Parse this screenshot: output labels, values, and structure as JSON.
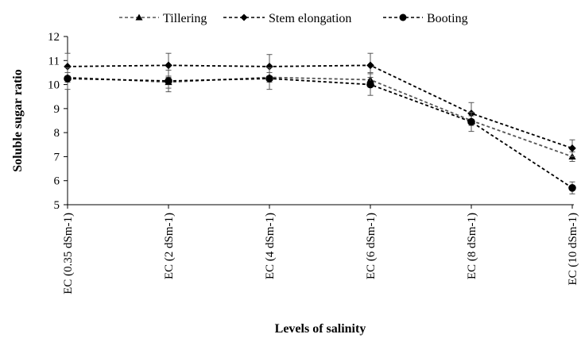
{
  "chart_data": {
    "type": "line",
    "title": "",
    "xlabel": "Levels of salinity",
    "ylabel": "Soluble sugar ratio",
    "categories": [
      "EC (0.35 dSm-1)",
      "EC (2 dSm-1)",
      "EC (4 dSm-1)",
      "EC (6 dSm-1)",
      "EC (8 dSm-1)",
      "EC (10 dSm-1)"
    ],
    "ylim": [
      5,
      12
    ],
    "yticks": [
      5,
      6,
      7,
      8,
      9,
      10,
      11,
      12
    ],
    "grid": false,
    "legend_position": "top",
    "series": [
      {
        "name": "Tillering",
        "marker": "triangle",
        "color": "#555555",
        "values": [
          10.3,
          10.1,
          10.3,
          10.2,
          8.5,
          7.0
        ],
        "errors": [
          0.2,
          0.25,
          0.2,
          0.3,
          0.2,
          0.2
        ]
      },
      {
        "name": "Stem elongation",
        "marker": "diamond",
        "color": "#000000",
        "values": [
          10.75,
          10.8,
          10.75,
          10.8,
          8.8,
          7.35
        ],
        "errors": [
          0.55,
          0.5,
          0.5,
          0.5,
          0.45,
          0.35
        ]
      },
      {
        "name": "Booting",
        "marker": "circle",
        "color": "#000000",
        "values": [
          10.25,
          10.15,
          10.25,
          10.0,
          8.45,
          5.7
        ],
        "errors": [
          0.45,
          0.45,
          0.45,
          0.45,
          0.4,
          0.25
        ]
      }
    ]
  }
}
